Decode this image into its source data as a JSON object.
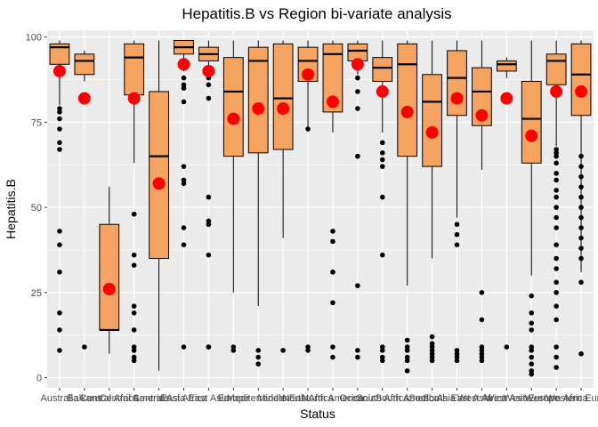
{
  "chart_data": {
    "type": "boxplot",
    "title": "Hepatitis.B vs Region bi-variate analysis",
    "xlabel": "Status",
    "ylabel": "Hepatitis.B",
    "ylim": [
      -3,
      102
    ],
    "yticks": [
      0,
      25,
      50,
      75,
      100
    ],
    "grid": true,
    "colors": {
      "panel": "#ebebeb",
      "grid": "#ffffff",
      "box_fill": "#f4a460",
      "mean": "#ff0000",
      "outline": "#000000"
    },
    "categories": [
      "Australia",
      "Balkans",
      "Central Africa",
      "Central America",
      "Central Asia",
      "East Africa",
      "East Asia",
      "Europe",
      "Mediterranean",
      "Middle East",
      "North Africa",
      "North America",
      "Oceania",
      "South Africa",
      "South America",
      "South Asia",
      "South East Asia",
      "West Africa",
      "West Asia",
      "West Europe",
      "Western Africa",
      "Western Europe"
    ],
    "boxes": [
      {
        "q1": 92,
        "median": 97,
        "q3": 98,
        "whisker_low": 80,
        "whisker_high": 99,
        "mean": 90,
        "outliers": [
          79,
          78,
          76,
          73,
          69,
          67,
          43,
          39,
          31,
          19,
          14,
          8
        ]
      },
      {
        "q1": 89,
        "median": 93,
        "q3": 95,
        "whisker_low": 87,
        "whisker_high": 96,
        "mean": 82,
        "outliers": [
          9
        ]
      },
      {
        "q1": 14,
        "median": 14,
        "q3": 45,
        "whisker_low": 7,
        "whisker_high": 56,
        "mean": 26,
        "outliers": []
      },
      {
        "q1": 83,
        "median": 94,
        "q3": 98,
        "whisker_low": 63,
        "whisker_high": 99,
        "mean": 82,
        "outliers": [
          48,
          48,
          36,
          33,
          21,
          19,
          14,
          9,
          8,
          6,
          5
        ]
      },
      {
        "q1": 35,
        "median": 65,
        "q3": 84,
        "whisker_low": 2,
        "whisker_high": 99,
        "mean": 57,
        "outliers": []
      },
      {
        "q1": 95,
        "median": 97,
        "q3": 99,
        "whisker_low": 90,
        "whisker_high": 99,
        "mean": 92,
        "outliers": [
          88,
          86,
          85,
          81,
          62,
          58,
          57,
          44,
          39,
          9
        ]
      },
      {
        "q1": 93,
        "median": 95,
        "q3": 97,
        "whisker_low": 89,
        "whisker_high": 99,
        "mean": 90,
        "outliers": [
          88,
          86,
          82,
          53,
          46,
          45,
          36,
          9,
          9
        ]
      },
      {
        "q1": 65,
        "median": 84,
        "q3": 94,
        "whisker_low": 25,
        "whisker_high": 99,
        "mean": 76,
        "outliers": [
          9,
          8
        ]
      },
      {
        "q1": 66,
        "median": 93,
        "q3": 97,
        "whisker_low": 21,
        "whisker_high": 99,
        "mean": 79,
        "outliers": [
          8,
          6,
          4
        ]
      },
      {
        "q1": 67,
        "median": 82,
        "q3": 98,
        "whisker_low": 41,
        "whisker_high": 99,
        "mean": 79,
        "outliers": [
          8
        ]
      },
      {
        "q1": 87,
        "median": 93,
        "q3": 97,
        "whisker_low": 73,
        "whisker_high": 99,
        "mean": 89,
        "outliers": [
          73,
          9,
          8
        ]
      },
      {
        "q1": 78,
        "median": 95,
        "q3": 98,
        "whisker_low": 72,
        "whisker_high": 99,
        "mean": 81,
        "outliers": [
          43,
          40,
          31,
          31,
          22,
          9,
          6
        ]
      },
      {
        "q1": 93,
        "median": 96,
        "q3": 98,
        "whisker_low": 89,
        "whisker_high": 99,
        "mean": 92,
        "outliers": [
          88,
          84,
          79,
          65,
          27,
          8,
          6
        ]
      },
      {
        "q1": 87,
        "median": 91,
        "q3": 94,
        "whisker_low": 72,
        "whisker_high": 99,
        "mean": 84,
        "outliers": [
          69,
          66,
          64,
          62,
          53,
          36,
          9,
          8,
          6,
          5
        ]
      },
      {
        "q1": 65,
        "median": 92,
        "q3": 98,
        "whisker_low": 27,
        "whisker_high": 99,
        "mean": 78,
        "outliers": [
          11,
          9,
          8,
          6,
          5,
          2
        ]
      },
      {
        "q1": 62,
        "median": 81,
        "q3": 89,
        "whisker_low": 35,
        "whisker_high": 99,
        "mean": 72,
        "outliers": [
          12,
          10,
          9,
          8,
          7,
          6,
          5
        ]
      },
      {
        "q1": 77,
        "median": 88,
        "q3": 96,
        "whisker_low": 47,
        "whisker_high": 99,
        "mean": 82,
        "outliers": [
          45,
          42,
          39,
          8,
          7,
          6,
          5
        ]
      },
      {
        "q1": 74,
        "median": 84,
        "q3": 91,
        "whisker_low": 61,
        "whisker_high": 99,
        "mean": 77,
        "outliers": [
          25,
          17,
          9,
          8,
          7,
          6,
          5
        ]
      },
      {
        "q1": 90,
        "median": 92,
        "q3": 93,
        "whisker_low": 88,
        "whisker_high": 94,
        "mean": 82,
        "outliers": [
          9
        ]
      },
      {
        "q1": 63,
        "median": 76,
        "q3": 87,
        "whisker_low": 30,
        "whisker_high": 99,
        "mean": 71,
        "outliers": [
          24,
          19,
          16,
          14,
          9,
          8,
          6,
          4,
          2,
          1
        ]
      },
      {
        "q1": 86,
        "median": 93,
        "q3": 95,
        "whisker_low": 68,
        "whisker_high": 99,
        "mean": 84,
        "outliers": [
          67,
          66,
          65,
          63,
          60,
          58,
          55,
          53,
          50,
          47,
          44,
          39,
          35,
          32,
          28,
          25,
          21,
          17,
          9,
          6,
          3
        ]
      },
      {
        "q1": 77,
        "median": 89,
        "q3": 98,
        "whisker_low": 31,
        "whisker_high": 99,
        "mean": 84,
        "outliers": [
          65,
          62,
          59,
          56,
          53,
          50,
          47,
          44,
          41,
          38,
          35,
          28,
          7
        ]
      }
    ]
  }
}
